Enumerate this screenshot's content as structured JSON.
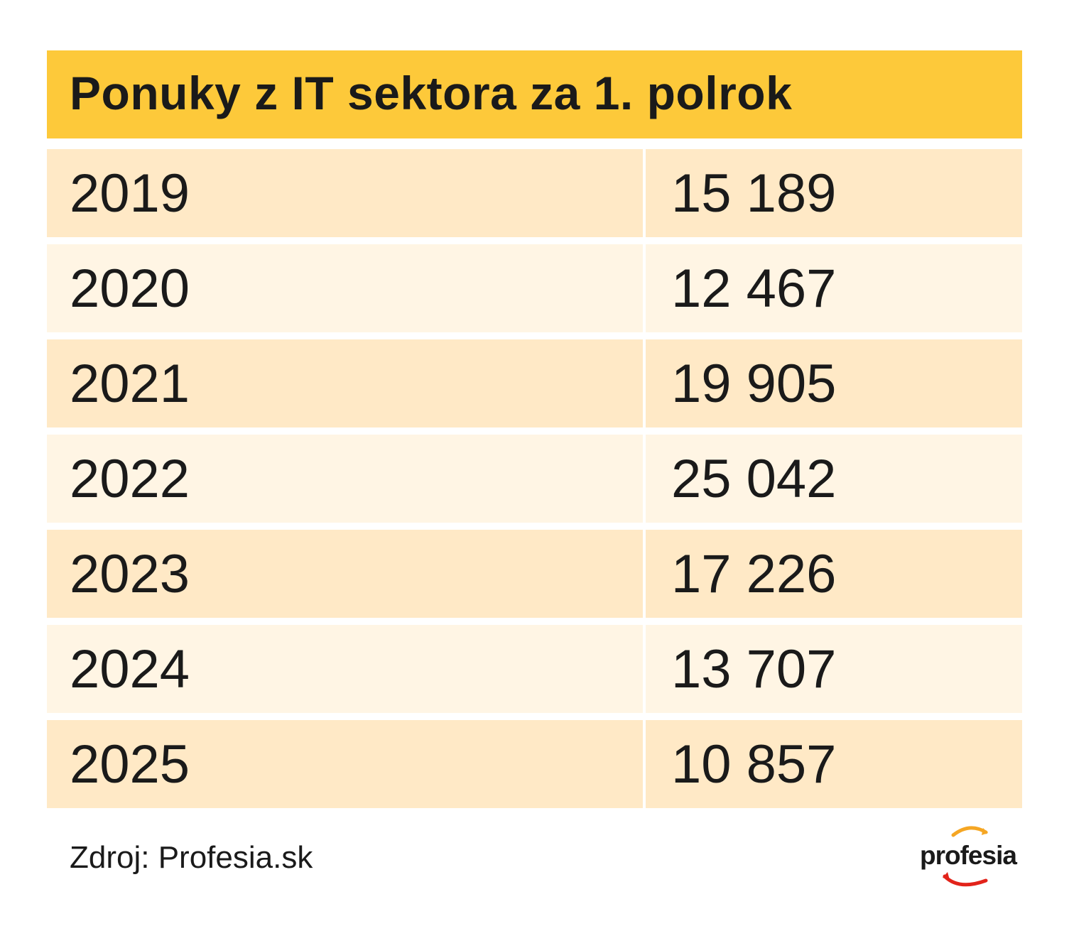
{
  "title": "Ponuky z IT sektora za 1. polrok",
  "rows": [
    {
      "year": "2019",
      "value": "15 189"
    },
    {
      "year": "2020",
      "value": "12 467"
    },
    {
      "year": "2021",
      "value": "19 905"
    },
    {
      "year": "2022",
      "value": "25 042"
    },
    {
      "year": "2023",
      "value": "17 226"
    },
    {
      "year": "2024",
      "value": "13 707"
    },
    {
      "year": "2025",
      "value": "10 857"
    }
  ],
  "source": "Zdroj: Profesia.sk",
  "logo": {
    "text": "profesia",
    "icon": "profesia-swoosh-logo"
  },
  "colors": {
    "header": "#fdc93a",
    "row_dark": "#ffe9c6",
    "row_light": "#fff5e4",
    "logo_orange": "#f5a623",
    "logo_red": "#e2231a"
  },
  "chart_data": {
    "type": "table",
    "title": "Ponuky z IT sektora za 1. polrok",
    "columns": [
      "",
      ""
    ],
    "rows": [
      [
        "2019",
        15189
      ],
      [
        "2020",
        12467
      ],
      [
        "2021",
        19905
      ],
      [
        "2022",
        25042
      ],
      [
        "2023",
        17226
      ],
      [
        "2024",
        13707
      ],
      [
        "2025",
        10857
      ]
    ]
  }
}
